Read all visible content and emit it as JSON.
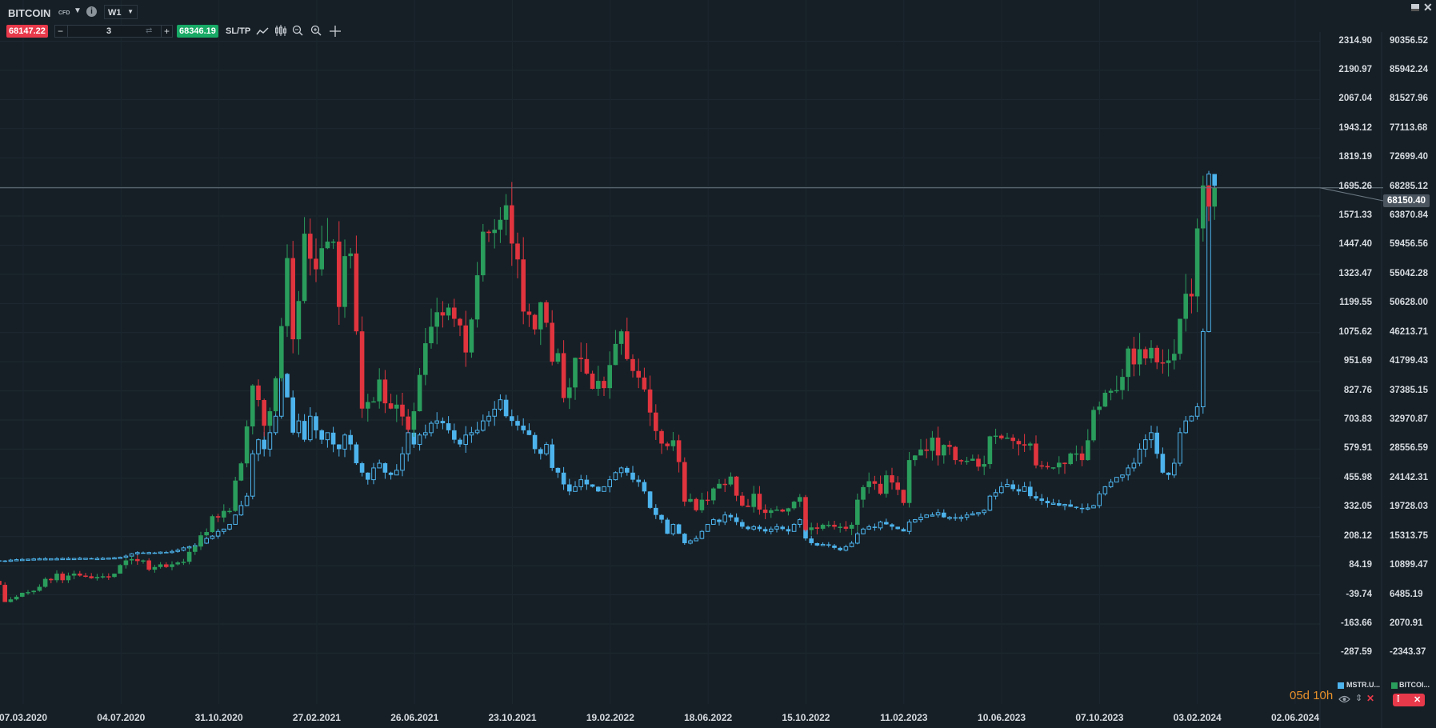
{
  "header": {
    "symbol": "BITCOIN",
    "symbol_type": "CFD",
    "timeframe": "W1",
    "sell_price": "68147.22",
    "buy_price": "68346.19",
    "quantity": "3",
    "sltp_label": "SL/TP",
    "minus": "−",
    "plus": "+",
    "icons": [
      "chevron-down-icon",
      "info-icon",
      "line-chart-icon",
      "candles-icon",
      "zoom-out-icon",
      "zoom-in-icon",
      "crosshair-icon",
      "minimize-icon",
      "close-icon"
    ]
  },
  "colors": {
    "background": "#161f26",
    "up": "#2a9d5c",
    "down": "#e0343e",
    "compare": "#4db3ec",
    "sell": "#e8394a",
    "buy": "#17a965",
    "countdown": "#e8902a"
  },
  "chart_data": {
    "type": "candlestick",
    "timeframe": "W1",
    "left_axis": {
      "ticks": [
        "2314.90",
        "2190.97",
        "2067.04",
        "1943.12",
        "1819.19",
        "1695.26",
        "1571.33",
        "1447.40",
        "1323.47",
        "1199.55",
        "1075.62",
        "951.69",
        "827.76",
        "703.83",
        "579.91",
        "455.98",
        "332.05",
        "208.12",
        "84.19",
        "-39.74",
        "-163.66",
        "-287.59"
      ],
      "range": [
        -287.59,
        2314.9
      ]
    },
    "right_axis": {
      "ticks": [
        "90356.52",
        "85942.24",
        "81527.96",
        "77113.68",
        "72699.40",
        "68285.12",
        "63870.84",
        "59456.56",
        "55042.28",
        "50628.00",
        "46213.71",
        "41799.43",
        "37385.15",
        "32970.87",
        "28556.59",
        "24142.31",
        "19728.03",
        "15313.75",
        "10899.47",
        "6485.19",
        "2070.91",
        "-2343.37"
      ],
      "range": [
        -2343.37,
        90356.52
      ]
    },
    "current_price": "68150.40",
    "x_ticks": [
      "07.03.2020",
      "04.07.2020",
      "31.10.2020",
      "27.02.2021",
      "26.06.2021",
      "23.10.2021",
      "19.02.2022",
      "18.06.2022",
      "15.10.2022",
      "11.02.2023",
      "10.06.2023",
      "07.10.2023",
      "03.02.2024",
      "02.06.2024"
    ],
    "series": [
      {
        "name": "BITCOI...",
        "axis": "right",
        "style": "filled",
        "closes": [
          9700,
          8600,
          8000,
          5400,
          5800,
          6200,
          6800,
          6900,
          7100,
          7700,
          8900,
          8700,
          9700,
          8700,
          9400,
          9700,
          9400,
          9300,
          9000,
          9200,
          9300,
          9200,
          9700,
          11000,
          11700,
          11900,
          11600,
          11700,
          10300,
          10700,
          11100,
          10700,
          11100,
          11400,
          11500,
          13000,
          13800,
          15500,
          16000,
          18400,
          18200,
          19200,
          19200,
          23800,
          26400,
          32000,
          38200,
          36000,
          32100,
          34300,
          39300,
          47200,
          57500,
          45200,
          51000,
          61200,
          57400,
          55800,
          59000,
          60000,
          60000,
          50100,
          57800,
          58200,
          46400,
          34700,
          35700,
          35800,
          39100,
          35500,
          34700,
          35300,
          33500,
          31500,
          34300,
          39800,
          44600,
          47100,
          49300,
          48800,
          50000,
          48300,
          47300,
          43200,
          48200,
          54900,
          61500,
          61300,
          61800,
          63300,
          65500,
          59700,
          57300,
          49400,
          48900,
          46700,
          50800,
          47700,
          41800,
          43100,
          36300,
          37900,
          42400,
          42200,
          40000,
          37700,
          38900,
          37800,
          41300,
          44500,
          46400,
          42200,
          40400,
          39400,
          37600,
          34100,
          31300,
          29400,
          29000,
          29900,
          26600,
          20600,
          21000,
          19300,
          20900,
          20800,
          22600,
          23300,
          23200,
          24400,
          21500,
          20000,
          19800,
          21800,
          19400,
          18900,
          19300,
          19400,
          19100,
          19600,
          20600,
          21300,
          16300,
          16700,
          16500,
          17100,
          17100,
          16800,
          16800,
          16500,
          17100,
          20900,
          22800,
          23700,
          23300,
          21800,
          24600,
          23500,
          22400,
          20400,
          26900,
          27600,
          28500,
          28300,
          30300,
          27600,
          29200,
          28900,
          26900,
          26700,
          26800,
          27100,
          25900,
          26300,
          30500,
          30600,
          30200,
          30300,
          29800,
          29300,
          29100,
          29400,
          26100,
          26000,
          25800,
          25800,
          26500,
          26300,
          27900,
          27900,
          26900,
          29900,
          34500,
          35000,
          37100,
          37400,
          37500,
          39500,
          43800,
          41400,
          43700,
          42300,
          43900,
          41700,
          41600,
          42000,
          43000,
          48300,
          52100,
          51700,
          62000,
          68500,
          65300,
          68150
        ]
      },
      {
        "name": "MSTR.U...",
        "axis": "left",
        "style": "hollow",
        "closes": [
          105,
          107,
          106,
          104,
          108,
          110,
          111,
          112,
          113,
          114,
          114,
          114,
          114,
          115,
          115,
          115,
          116,
          116,
          115,
          115,
          116,
          117,
          118,
          120,
          125,
          135,
          140,
          138,
          140,
          138,
          142,
          140,
          145,
          150,
          160,
          165,
          170,
          180,
          200,
          210,
          230,
          240,
          260,
          300,
          340,
          380,
          560,
          620,
          580,
          650,
          720,
          900,
          800,
          650,
          700,
          620,
          720,
          660,
          620,
          650,
          600,
          580,
          640,
          600,
          520,
          480,
          450,
          500,
          520,
          480,
          470,
          490,
          560,
          650,
          600,
          640,
          650,
          690,
          700,
          690,
          660,
          620,
          600,
          640,
          650,
          660,
          700,
          720,
          750,
          790,
          720,
          700,
          680,
          660,
          640,
          580,
          560,
          600,
          500,
          480,
          430,
          400,
          420,
          450,
          430,
          420,
          400,
          420,
          450,
          480,
          500,
          480,
          450,
          440,
          400,
          330,
          300,
          280,
          220,
          260,
          220,
          180,
          190,
          200,
          230,
          260,
          280,
          270,
          300,
          290,
          270,
          250,
          240,
          250,
          240,
          230,
          240,
          250,
          240,
          230,
          260,
          280,
          200,
          180,
          170,
          175,
          170,
          160,
          150,
          165,
          180,
          220,
          240,
          250,
          245,
          270,
          260,
          250,
          240,
          230,
          270,
          280,
          290,
          300,
          300,
          310,
          290,
          290,
          285,
          290,
          300,
          305,
          310,
          320,
          380,
          395,
          420,
          430,
          410,
          400,
          420,
          380,
          370,
          360,
          350,
          350,
          340,
          345,
          335,
          330,
          325,
          330,
          340,
          390,
          420,
          440,
          460,
          470,
          500,
          520,
          580,
          620,
          650,
          560,
          480,
          470,
          520,
          650,
          700,
          720,
          760,
          1080,
          1750,
          1700
        ]
      }
    ]
  },
  "footer": {
    "countdown": "05d 10h",
    "legend": [
      {
        "label": "MSTR.U..."
      },
      {
        "label": "BITCOI..."
      }
    ]
  }
}
